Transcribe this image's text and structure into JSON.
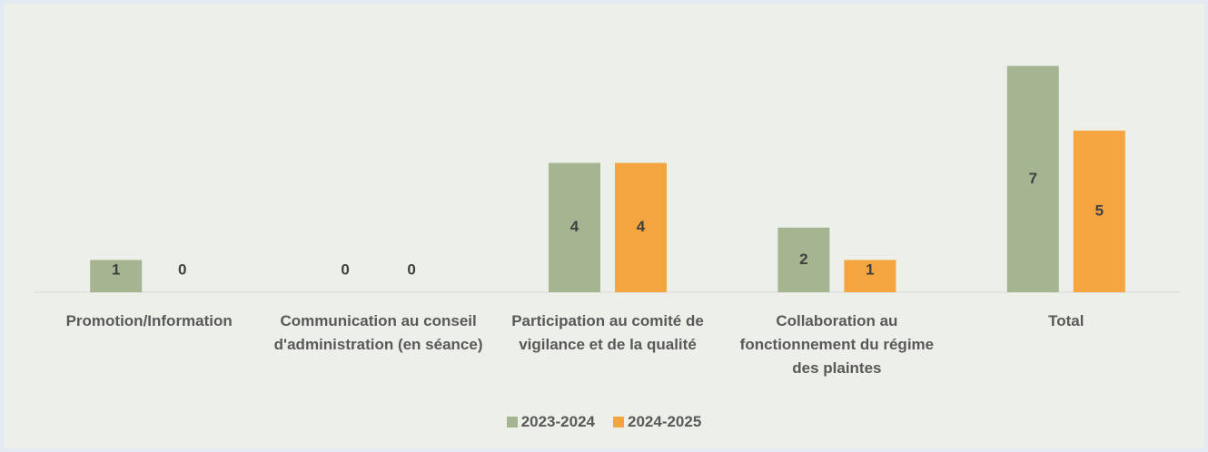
{
  "chart_data": {
    "type": "bar",
    "categories": [
      "Promotion/Information",
      "Communication au conseil d'administration (en séance)",
      "Participation au comité de vigilance et de la qualité",
      "Collaboration au fonctionnement du régime des plaintes",
      "Total"
    ],
    "series": [
      {
        "name": "2023-2024",
        "color": "#a5b592",
        "values": [
          1,
          0,
          4,
          2,
          7
        ]
      },
      {
        "name": "2024-2025",
        "color": "#f4a540",
        "values": [
          0,
          0,
          4,
          1,
          5
        ]
      }
    ],
    "ylim": [
      0,
      8
    ],
    "legend": "bottom"
  }
}
